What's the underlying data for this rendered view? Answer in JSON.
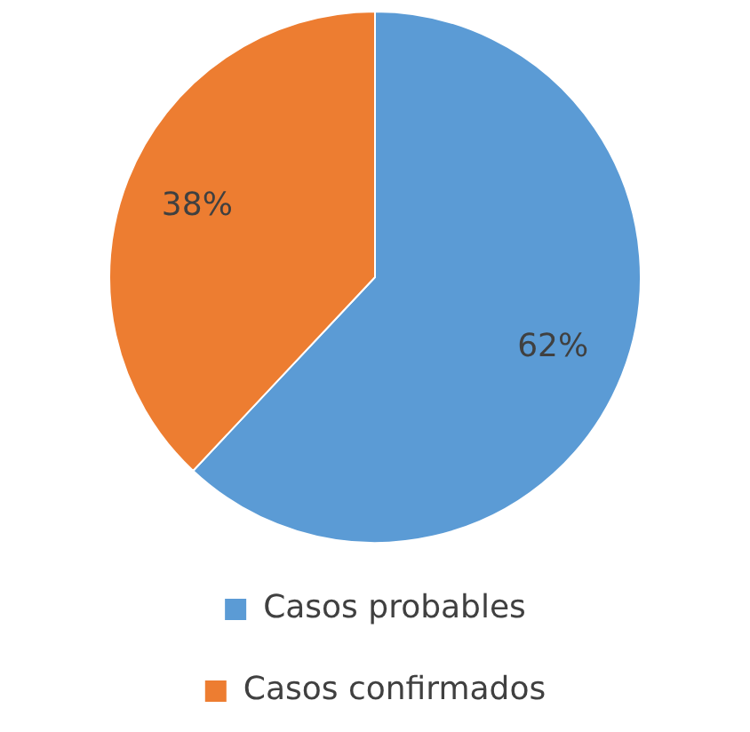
{
  "chart_data": {
    "type": "pie",
    "categories": [
      "Casos probables",
      "Casos confirmados"
    ],
    "values": [
      62,
      38
    ],
    "colors": [
      "#5b9bd5",
      "#ed7d31"
    ],
    "value_labels": [
      "62%",
      "38%"
    ],
    "legend": "bottom"
  }
}
